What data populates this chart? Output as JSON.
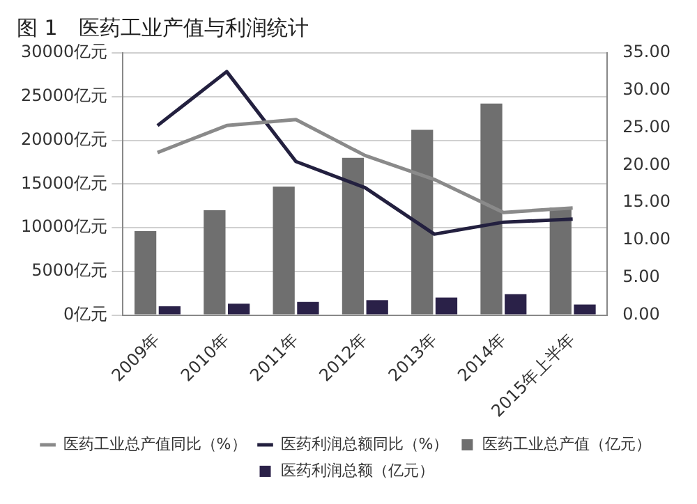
{
  "chart_data": {
    "type": "bar",
    "title": "图 1　医药工业产值与利润统计",
    "categories": [
      "2009年",
      "2010年",
      "2011年",
      "2012年",
      "2013年",
      "2014年",
      "2015年上半年"
    ],
    "series": [
      {
        "name": "医药工业总产值（亿元）",
        "color": "#6f6f6f",
        "values": [
          9600,
          12000,
          14700,
          18000,
          21200,
          24200,
          12300
        ]
      },
      {
        "name": "医药利润总额（亿元）",
        "color": "#2a2148",
        "values": [
          1000,
          1300,
          1500,
          1700,
          2000,
          2400,
          1200
        ]
      },
      {
        "name": "医药工业总产值同比（%）",
        "type": "line",
        "axis": "y2",
        "color": "#8a8a8a",
        "values": [
          21.7,
          25.3,
          26.1,
          21.3,
          18.1,
          13.7,
          14.3
        ]
      },
      {
        "name": "医药利润总额同比（%）",
        "type": "line",
        "axis": "y2",
        "color": "#23203f",
        "values": [
          25.3,
          32.5,
          20.5,
          17,
          10.8,
          12.4,
          12.8
        ]
      }
    ],
    "ylim": [
      0,
      30000
    ],
    "yticks": [
      {
        "value": 0,
        "label": "0亿元"
      },
      {
        "value": 5000,
        "label": "5000亿元"
      },
      {
        "value": 10000,
        "label": "10000亿元"
      },
      {
        "value": 15000,
        "label": "15000亿元"
      },
      {
        "value": 20000,
        "label": "20000亿元"
      },
      {
        "value": 25000,
        "label": "25000亿元"
      },
      {
        "value": 30000,
        "label": "30000亿元"
      }
    ],
    "y2lim": [
      0,
      35
    ],
    "y2ticks": [
      {
        "value": 0,
        "label": "0.00"
      },
      {
        "value": 5,
        "label": "5.00"
      },
      {
        "value": 10,
        "label": "10.00"
      },
      {
        "value": 15,
        "label": "15.00"
      },
      {
        "value": 20,
        "label": "20.00"
      },
      {
        "value": 25,
        "label": "25.00"
      },
      {
        "value": 30,
        "label": "30.00"
      },
      {
        "value": 35,
        "label": "35.00"
      }
    ],
    "grid": "y",
    "legend": "bottom",
    "marker": "none",
    "line_style": "solid"
  }
}
